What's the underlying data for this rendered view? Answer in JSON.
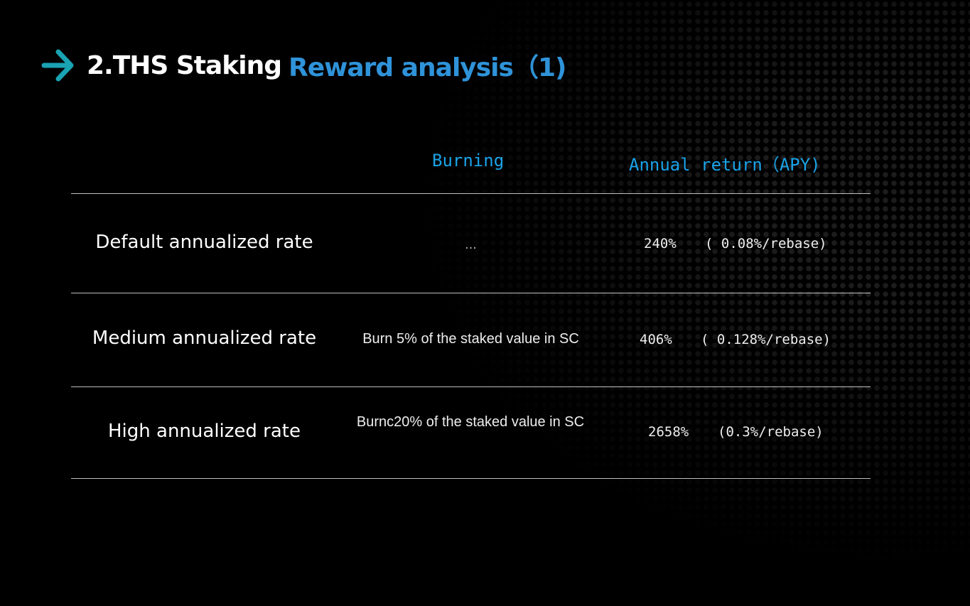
{
  "title": {
    "part1": "2.THS Staking",
    "part2": "Reward analysis（1)",
    "arrow_icon": "arrow-right-icon",
    "accent": "#2f93d9",
    "arrow_color": "#1aa3b3"
  },
  "table": {
    "headers": {
      "burning": "Burning",
      "apy": "Annual return（APY)"
    },
    "rows": [
      {
        "label": "Default annualized rate",
        "burning": "...",
        "apy": "240%",
        "rebase": "( 0.08%/rebase)"
      },
      {
        "label": "Medium annualized rate",
        "burning": "Burn 5% of the staked value in SC",
        "apy": "406%",
        "rebase": "( 0.128%/rebase)"
      },
      {
        "label": "High annualized rate",
        "burning": "Burnc20% of the staked value in SC",
        "apy": "2658%",
        "rebase": "(0.3%/rebase)"
      }
    ]
  }
}
